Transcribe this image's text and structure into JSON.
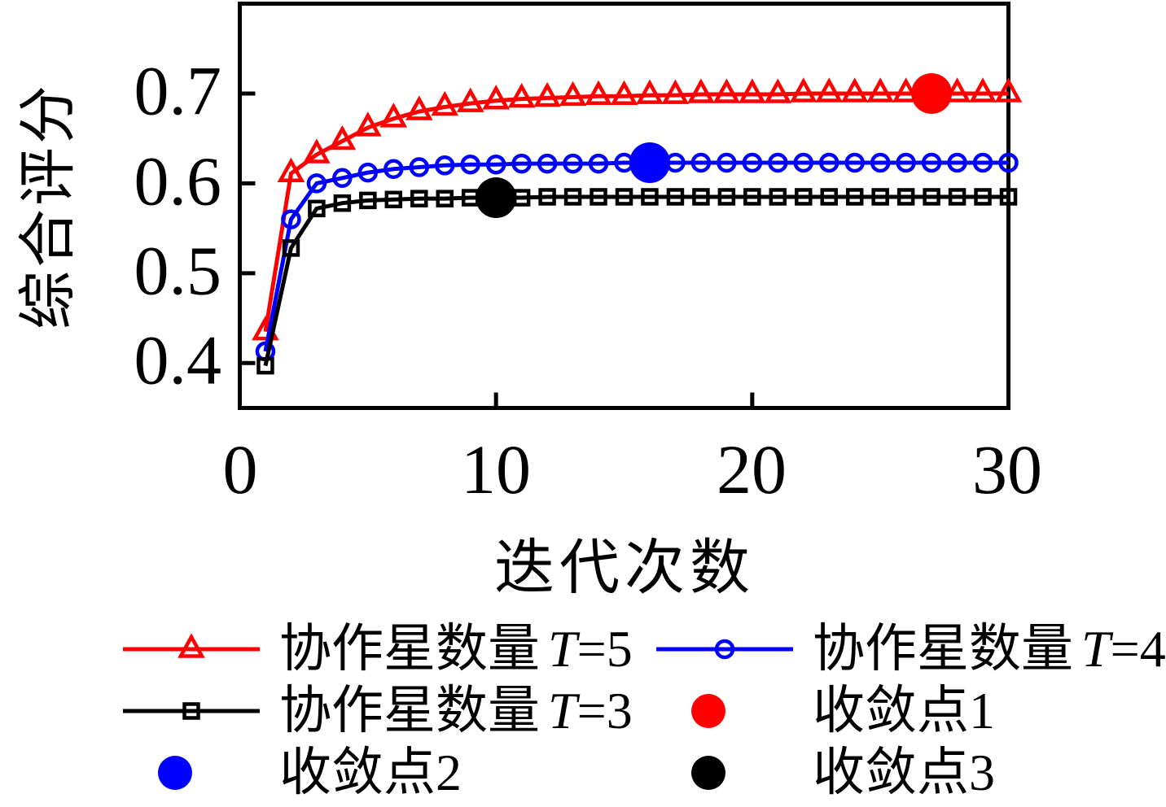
{
  "chart_data": {
    "type": "line",
    "xlabel": "迭代次数",
    "ylabel": "综合评分",
    "xlim": [
      0,
      30
    ],
    "ylim": [
      0.35,
      0.8
    ],
    "xticks": [
      0,
      10,
      20,
      30
    ],
    "yticks": [
      0.4,
      0.5,
      0.6,
      0.7
    ],
    "xtick_labels": [
      "0",
      "10",
      "20",
      "30"
    ],
    "ytick_labels": [
      "0.4",
      "0.5",
      "0.6",
      "0.7"
    ],
    "grid": false,
    "legend_position": "below",
    "x": [
      1,
      2,
      3,
      4,
      5,
      6,
      7,
      8,
      9,
      10,
      11,
      12,
      13,
      14,
      15,
      16,
      17,
      18,
      19,
      20,
      21,
      22,
      23,
      24,
      25,
      26,
      27,
      28,
      29,
      30
    ],
    "series": [
      {
        "name": "协作星数量T=5",
        "color": "#ff0000",
        "marker": "triangle",
        "values": [
          0.435,
          0.611,
          0.632,
          0.647,
          0.662,
          0.672,
          0.68,
          0.685,
          0.689,
          0.692,
          0.694,
          0.695,
          0.696,
          0.697,
          0.697,
          0.698,
          0.698,
          0.699,
          0.699,
          0.699,
          0.699,
          0.7,
          0.7,
          0.7,
          0.7,
          0.7,
          0.7,
          0.7,
          0.7,
          0.7
        ]
      },
      {
        "name": "协作星数量T=4",
        "color": "#0000ff",
        "marker": "circle",
        "values": [
          0.413,
          0.56,
          0.6,
          0.606,
          0.612,
          0.616,
          0.618,
          0.62,
          0.621,
          0.621,
          0.622,
          0.622,
          0.622,
          0.622,
          0.623,
          0.623,
          0.623,
          0.623,
          0.623,
          0.623,
          0.623,
          0.623,
          0.623,
          0.623,
          0.623,
          0.623,
          0.623,
          0.623,
          0.623,
          0.623
        ]
      },
      {
        "name": "协作星数量T=3",
        "color": "#000000",
        "marker": "square",
        "values": [
          0.397,
          0.528,
          0.572,
          0.578,
          0.581,
          0.582,
          0.583,
          0.583,
          0.584,
          0.584,
          0.584,
          0.585,
          0.585,
          0.585,
          0.585,
          0.585,
          0.585,
          0.585,
          0.585,
          0.585,
          0.585,
          0.585,
          0.585,
          0.585,
          0.585,
          0.585,
          0.585,
          0.585,
          0.585,
          0.585
        ]
      }
    ],
    "convergence_points": [
      {
        "name": "收敛点1",
        "color": "#ff0000",
        "x": 27,
        "y": 0.7
      },
      {
        "name": "收敛点2",
        "color": "#0000ff",
        "x": 16,
        "y": 0.623
      },
      {
        "name": "收敛点3",
        "color": "#000000",
        "x": 10,
        "y": 0.584
      }
    ]
  },
  "legend": {
    "items": [
      {
        "prefix": "协作星数量",
        "var": "T",
        "suffix": "=5",
        "type": "line",
        "marker": "triangle",
        "color": "#ff0000"
      },
      {
        "prefix": "协作星数量",
        "var": "T",
        "suffix": "=4",
        "type": "line",
        "marker": "circle",
        "color": "#0000ff"
      },
      {
        "prefix": "协作星数量",
        "var": "T",
        "suffix": "=3",
        "type": "line",
        "marker": "square",
        "color": "#000000"
      },
      {
        "prefix": "收敛点1",
        "var": "",
        "suffix": "",
        "type": "dot",
        "marker": "dot",
        "color": "#ff0000"
      },
      {
        "prefix": "收敛点2",
        "var": "",
        "suffix": "",
        "type": "dot",
        "marker": "dot",
        "color": "#0000ff"
      },
      {
        "prefix": "收敛点3",
        "var": "",
        "suffix": "",
        "type": "dot",
        "marker": "dot",
        "color": "#000000"
      }
    ]
  }
}
